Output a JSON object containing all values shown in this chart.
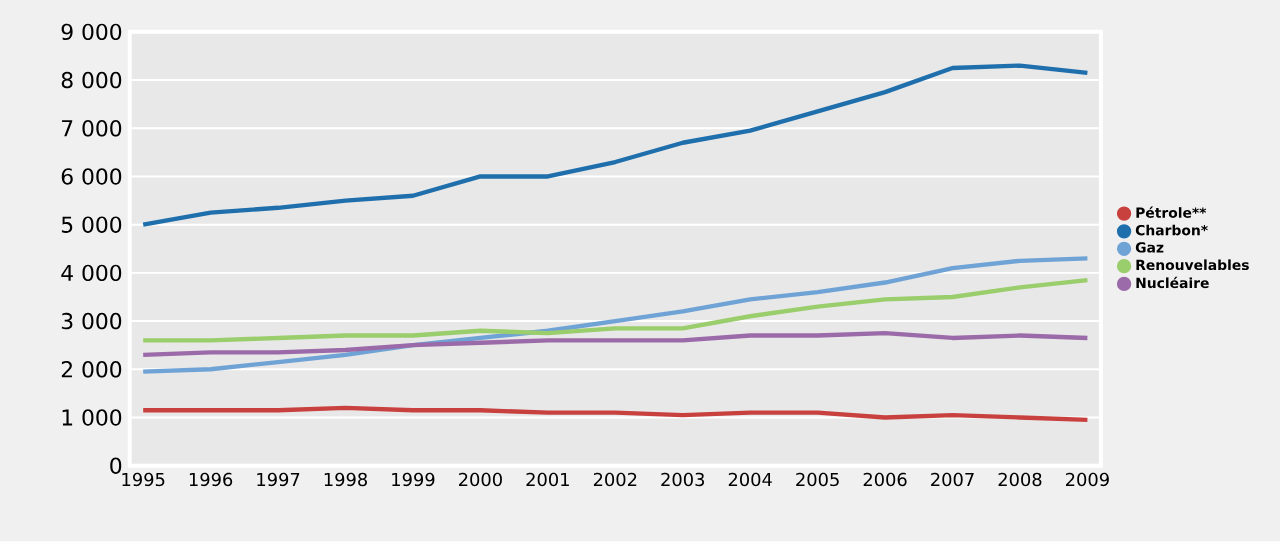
{
  "chart_data": {
    "type": "line",
    "x": [
      1995,
      1996,
      1997,
      1998,
      1999,
      2000,
      2001,
      2002,
      2003,
      2004,
      2005,
      2006,
      2007,
      2008,
      2009
    ],
    "xlim": [
      1994.8,
      2009.2
    ],
    "xticks": [
      1995,
      1996,
      1997,
      1998,
      1999,
      2000,
      2001,
      2002,
      2003,
      2004,
      2005,
      2006,
      2007,
      2008,
      2009
    ],
    "ylim": [
      0,
      9000
    ],
    "yticks": [
      0,
      {
        "value": 1000,
        "label": "1 000"
      },
      {
        "value": 2000,
        "label": "2 000"
      },
      {
        "value": 3000,
        "label": "3 000"
      },
      {
        "value": 4000,
        "label": "4 000"
      },
      {
        "value": 5000,
        "label": "5 000"
      },
      {
        "value": 6000,
        "label": "6 000"
      },
      {
        "value": 7000,
        "label": "7 000"
      },
      {
        "value": 8000,
        "label": "8 000"
      },
      {
        "value": 9000,
        "label": "9 000"
      }
    ],
    "grid": "y",
    "legend": "right",
    "marker": "none",
    "line_style": "solid",
    "series": [
      {
        "name": "Pétrole**",
        "color": "#c8413f",
        "values": [
          1150,
          1150,
          1150,
          1200,
          1150,
          1150,
          1100,
          1100,
          1050,
          1100,
          1100,
          1000,
          1050,
          1000,
          950
        ]
      },
      {
        "name": "Charbon*",
        "color": "#1f6fad",
        "values": [
          5000,
          5250,
          5350,
          5500,
          5600,
          6000,
          6000,
          6300,
          6700,
          6950,
          7350,
          7750,
          8250,
          8300,
          8150
        ]
      },
      {
        "name": "Gaz",
        "color": "#6fa3d6",
        "values": [
          1950,
          2000,
          2150,
          2300,
          2500,
          2650,
          2800,
          3000,
          3200,
          3450,
          3600,
          3800,
          4100,
          4250,
          4300
        ]
      },
      {
        "name": "Renouvelables",
        "color": "#9acd6b",
        "values": [
          2600,
          2600,
          2650,
          2700,
          2700,
          2800,
          2750,
          2850,
          2850,
          3100,
          3300,
          3450,
          3500,
          3700,
          3850
        ]
      },
      {
        "name": "Nucléaire",
        "color": "#9b6aa8",
        "values": [
          2300,
          2350,
          2350,
          2400,
          2500,
          2550,
          2600,
          2600,
          2600,
          2700,
          2700,
          2750,
          2650,
          2700,
          2650
        ]
      }
    ]
  }
}
